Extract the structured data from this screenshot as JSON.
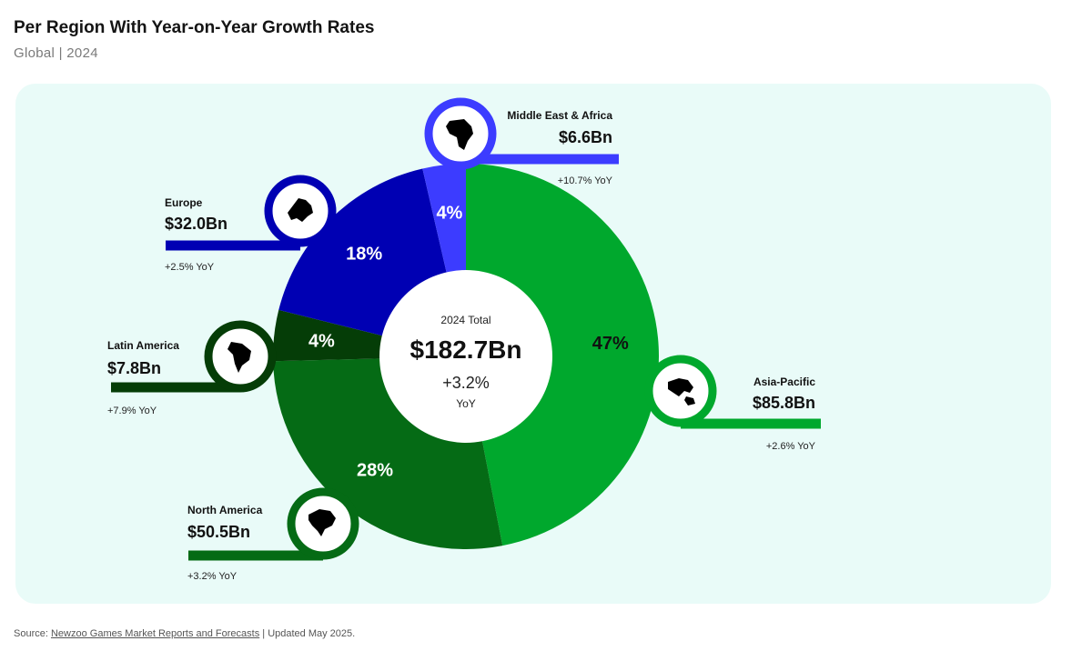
{
  "header": {
    "title": "Per Region With Year-on-Year Growth Rates",
    "subtitle": "Global | 2024"
  },
  "center": {
    "label": "2024 Total",
    "total": "$182.7Bn",
    "growth": "+3.2%",
    "growth_unit": "YoY"
  },
  "footer": {
    "prefix": "Source: ",
    "link": "Newzoo Games Market Reports and Forecasts",
    "suffix": " | Updated May 2025."
  },
  "chart_data": {
    "type": "pie",
    "variant": "donut",
    "start_angle_deg": 0,
    "direction": "clockwise",
    "slices": [
      {
        "name": "Asia-Pacific",
        "value_label": "$85.8Bn",
        "value": 85.8,
        "percent": 47,
        "percent_label": "47%",
        "yoy": "+2.6% YoY",
        "color": "#00a82d",
        "text_color": "#111111",
        "icon": "asia-pacific-map-icon"
      },
      {
        "name": "North America",
        "value_label": "$50.5Bn",
        "value": 50.5,
        "percent": 28,
        "percent_label": "28%",
        "yoy": "+3.2% YoY",
        "color": "#056b15",
        "text_color": "#ffffff",
        "icon": "north-america-map-icon"
      },
      {
        "name": "Latin America",
        "value_label": "$7.8Bn",
        "value": 7.8,
        "percent": 4,
        "percent_label": "4%",
        "yoy": "+7.9% YoY",
        "color": "#053d07",
        "text_color": "#ffffff",
        "icon": "latin-america-map-icon"
      },
      {
        "name": "Europe",
        "value_label": "$32.0Bn",
        "value": 32.0,
        "percent": 18,
        "percent_label": "18%",
        "yoy": "+2.5% YoY",
        "color": "#0000b3",
        "text_color": "#ffffff",
        "icon": "europe-map-icon"
      },
      {
        "name": "Middle East & Africa",
        "value_label": "$6.6Bn",
        "value": 6.6,
        "percent": 4,
        "percent_label": "4%",
        "yoy": "+10.7% YoY",
        "color": "#3c3cff",
        "text_color": "#ffffff",
        "icon": "africa-map-icon"
      }
    ]
  }
}
